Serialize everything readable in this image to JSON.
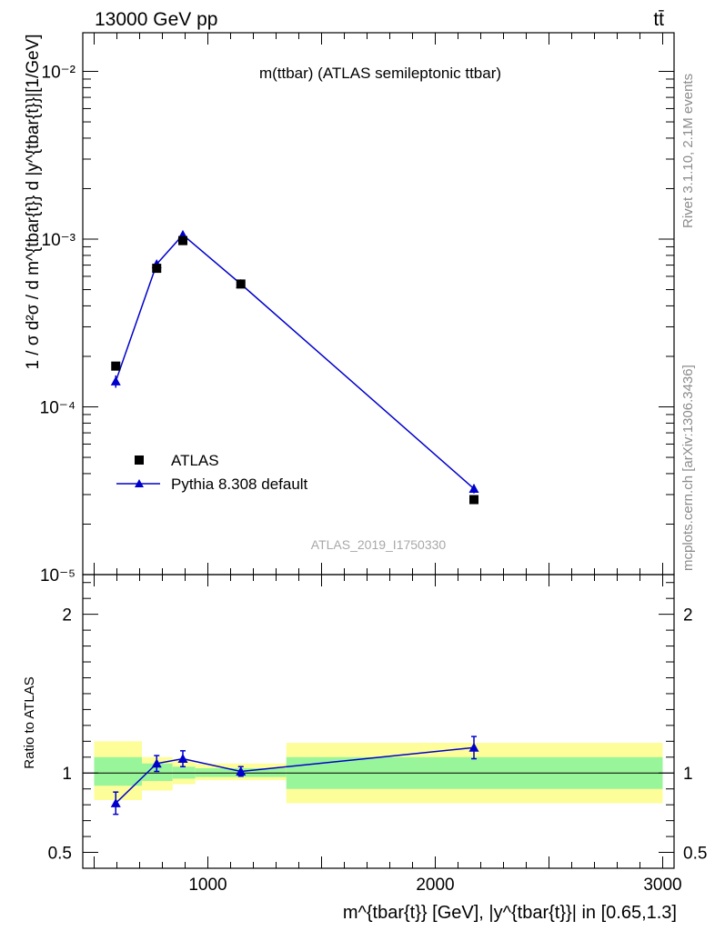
{
  "header": {
    "energy_label": "13000 GeV pp",
    "process_label": "tt̄"
  },
  "side_text": {
    "rivet": "Rivet 3.1.10,  2.1M events",
    "mcplots": "mcplots.cern.ch [arXiv:1306.3436]"
  },
  "chart_data": [
    {
      "type": "scatter",
      "panel": "main",
      "title": "m(ttbar) (ATLAS semileptonic ttbar)",
      "watermark": "ATLAS_2019_I1750330",
      "ylabel": "1 / σ d²σ / d m^{tbar{t}} d |y^{tbar{t}}|[1/GeV]",
      "yscale": "log",
      "ylim": [
        1e-05,
        0.017
      ],
      "xlim": [
        450,
        3050
      ],
      "grid": false,
      "legend_position": "bottom-left",
      "y_tick_labels": [
        "10⁻⁵",
        "10⁻⁴",
        "10⁻³",
        "10⁻²"
      ],
      "series": [
        {
          "name": "ATLAS",
          "color": "#000000",
          "marker": "square",
          "x": [
            595,
            775,
            890,
            1145,
            2170
          ],
          "y": [
            0.000175,
            0.00067,
            0.00098,
            0.00054,
            2.8e-05
          ]
        },
        {
          "name": "Pythia 8.308 default",
          "color": "#0000cc",
          "marker": "triangle",
          "line": true,
          "x": [
            595,
            775,
            890,
            1145,
            2170
          ],
          "y": [
            0.000142,
            0.00071,
            0.00106,
            0.00054,
            3.25e-05
          ],
          "yerr": [
            1.2e-05,
            4e-05,
            5e-05,
            2.2e-05,
            2e-06
          ]
        }
      ]
    },
    {
      "type": "scatter",
      "panel": "ratio",
      "ylabel": "Ratio to ATLAS",
      "xlabel": "m^{tbar{t}} [GeV], |y^{tbar{t}}| in [0.65,1.3]",
      "xlim": [
        450,
        3050
      ],
      "ylim": [
        0.4,
        2.25
      ],
      "x_ticks": [
        1000,
        2000,
        3000
      ],
      "y_ticks": [
        0.5,
        1,
        2
      ],
      "reference_line": 1,
      "bands": {
        "colors": {
          "inner": "#99f599",
          "outer": "#fdfd99"
        },
        "bins": [
          {
            "x0": 500,
            "x1": 710,
            "outer": [
              0.83,
              1.2
            ],
            "inner": [
              0.92,
              1.1
            ]
          },
          {
            "x0": 710,
            "x1": 845,
            "outer": [
              0.89,
              1.1
            ],
            "inner": [
              0.95,
              1.06
            ]
          },
          {
            "x0": 845,
            "x1": 945,
            "outer": [
              0.93,
              1.08
            ],
            "inner": [
              0.965,
              1.04
            ]
          },
          {
            "x0": 945,
            "x1": 1345,
            "outer": [
              0.955,
              1.06
            ],
            "inner": [
              0.975,
              1.03
            ]
          },
          {
            "x0": 1345,
            "x1": 3000,
            "outer": [
              0.81,
              1.19
            ],
            "inner": [
              0.9,
              1.1
            ]
          }
        ]
      },
      "series": [
        {
          "name": "Pythia 8.308 default",
          "color": "#0000cc",
          "marker": "triangle",
          "x": [
            595,
            775,
            890,
            1145,
            2170
          ],
          "y": [
            0.81,
            1.06,
            1.09,
            1.01,
            1.16
          ],
          "yerr": [
            0.07,
            0.05,
            0.05,
            0.03,
            0.07
          ]
        }
      ]
    }
  ]
}
